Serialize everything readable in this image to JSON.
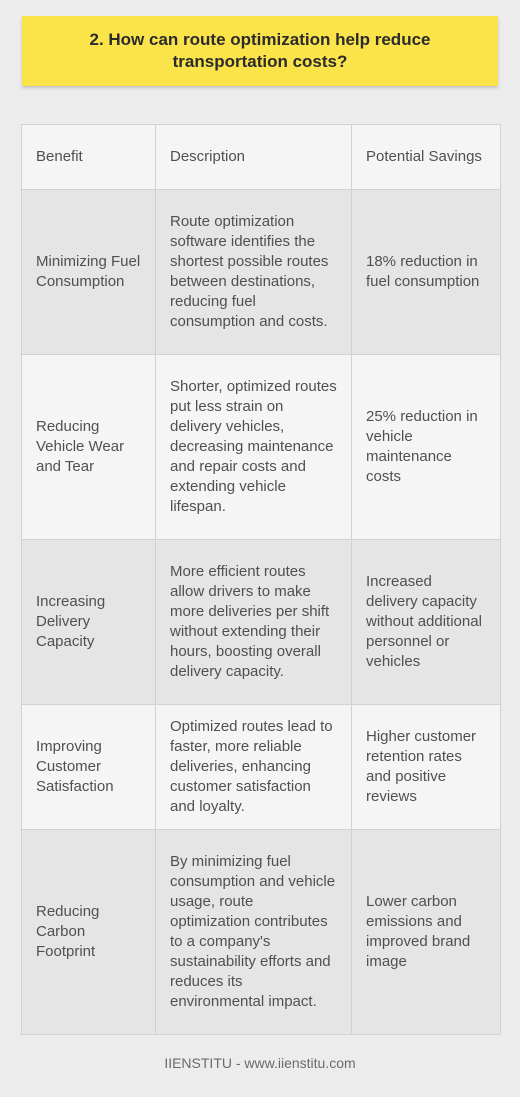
{
  "title": "2. How can route optimization help reduce transportation costs?",
  "table": {
    "headers": [
      "Benefit",
      "Description",
      "Potential Savings"
    ],
    "rows": [
      {
        "benefit": "Minimizing Fuel Consumption",
        "description": "Route optimization software identifies the shortest possible routes between destinations, reducing fuel consumption and costs.",
        "savings": "18% reduction in fuel consumption"
      },
      {
        "benefit": "Reducing Vehicle Wear and Tear",
        "description": "Shorter, optimized routes put less strain on delivery vehicles, decreasing maintenance and repair costs and extending vehicle lifespan.",
        "savings": "25% reduction in vehicle maintenance costs"
      },
      {
        "benefit": "Increasing Delivery Capacity",
        "description": "More efficient routes allow drivers to make more deliveries per shift without extending their hours, boosting overall delivery capacity.",
        "savings": "Increased delivery capacity without additional personnel or vehicles"
      },
      {
        "benefit": "Improving Customer Satisfaction",
        "description": "Optimized routes lead to faster, more reliable deliveries, enhancing customer satisfaction and loyalty.",
        "savings": "Higher customer retention rates and positive reviews"
      },
      {
        "benefit": "Reducing Carbon Footprint",
        "description": "By minimizing fuel consumption and vehicle usage, route optimization contributes to a company's sustainability efforts and reduces its environmental impact.",
        "savings": "Lower carbon emissions and improved brand image"
      }
    ]
  },
  "footer": "IIENSTITU - www.iienstitu.com",
  "colors": {
    "title_background": "#fbe34a",
    "page_background": "#ececec",
    "row_dark": "#e5e5e5",
    "row_light": "#f5f5f5"
  }
}
